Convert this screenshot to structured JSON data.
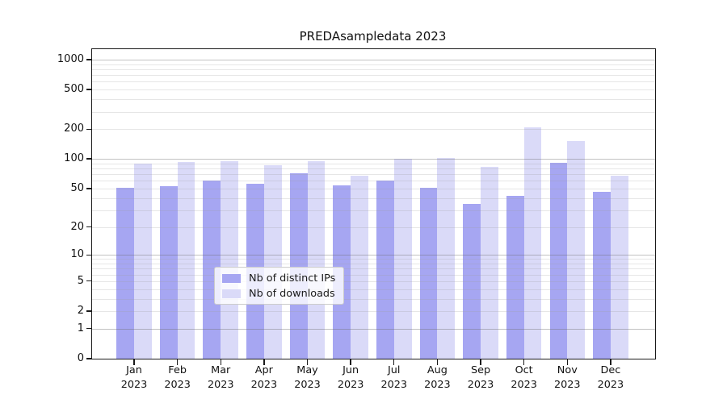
{
  "chart_data": {
    "type": "bar",
    "title": "PREDAsampledata 2023",
    "categories": [
      "Jan 2023",
      "Feb 2023",
      "Mar 2023",
      "Apr 2023",
      "May 2023",
      "Jun 2023",
      "Jul 2023",
      "Aug 2023",
      "Sep 2023",
      "Oct 2023",
      "Nov 2023",
      "Dec 2023"
    ],
    "x_axis": {
      "months": [
        "Jan",
        "Feb",
        "Mar",
        "Apr",
        "May",
        "Jun",
        "Jul",
        "Aug",
        "Sep",
        "Oct",
        "Nov",
        "Dec"
      ],
      "year": "2023"
    },
    "series": [
      {
        "name": "Nb of distinct IPs",
        "color": "#a6a6f2",
        "values": [
          51,
          53,
          60,
          56,
          72,
          54,
          60,
          51,
          35,
          42,
          91,
          46
        ]
      },
      {
        "name": "Nb of downloads",
        "color": "#dadaf8",
        "values": [
          90,
          93,
          95,
          86,
          95,
          67,
          101,
          103,
          83,
          207,
          152,
          67
        ]
      }
    ],
    "y_axis": {
      "scale": "log1p",
      "tick_values": [
        1000,
        500,
        200,
        100,
        50,
        20,
        10,
        5,
        2,
        1,
        0
      ],
      "tick_labels": [
        "1000",
        "500",
        "200",
        "100",
        "50",
        "20",
        "10",
        "5",
        "2",
        "1",
        "0"
      ],
      "max_value": 1275
    },
    "grid": {
      "major_values": [
        1,
        10,
        100,
        1000
      ],
      "minor_rule": "2-9 per decade",
      "major_color": "#c2c2c2",
      "minor_color": "#e4e4e4",
      "drawn_over_bars": true
    },
    "legend": {
      "position": "bottom-center",
      "entries": [
        "Nb of distinct IPs",
        "Nb of downloads"
      ]
    },
    "background": "#ffffff"
  }
}
